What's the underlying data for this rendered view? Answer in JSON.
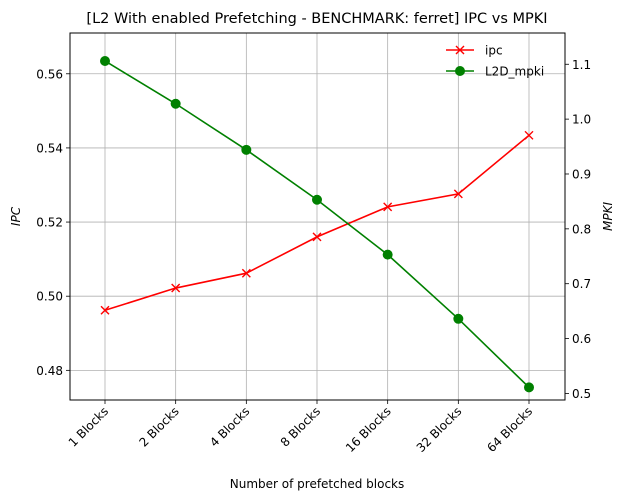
{
  "chart_data": {
    "type": "line",
    "title": "[L2 With enabled Prefetching - BENCHMARK: ferret]  IPC vs MPKI",
    "xlabel": "Number of prefetched blocks",
    "ylabel_left": "IPC",
    "ylabel_right": "MPKI",
    "categories": [
      "1 Blocks",
      "2 Blocks",
      "4 Blocks",
      "8 Blocks",
      "16 Blocks",
      "32 Blocks",
      "64 Blocks"
    ],
    "ylim_left": [
      0.472,
      0.571
    ],
    "ylim_right": [
      0.488,
      1.157
    ],
    "yticks_left": [
      "0.48",
      "0.50",
      "0.52",
      "0.54",
      "0.56"
    ],
    "yticks_right": [
      "0.5",
      "0.6",
      "0.7",
      "0.8",
      "0.9",
      "1.0",
      "1.1"
    ],
    "grid": true,
    "legend_position": "top-right",
    "series": [
      {
        "name": "ipc",
        "axis": "left",
        "color": "#ff0000",
        "marker": "x",
        "values": [
          0.4962,
          0.5022,
          0.5062,
          0.516,
          0.5241,
          0.5276,
          0.5434
        ]
      },
      {
        "name": "L2D_mpki",
        "axis": "right",
        "color": "#008000",
        "marker": "circle",
        "values": [
          1.106,
          1.028,
          0.944,
          0.853,
          0.753,
          0.636,
          0.511
        ]
      }
    ]
  }
}
